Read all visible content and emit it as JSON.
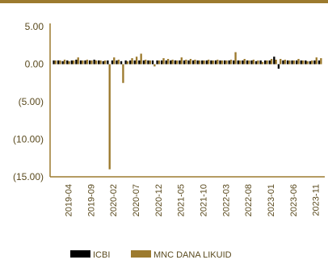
{
  "chart_data": {
    "type": "bar",
    "title": "",
    "xlabel": "",
    "ylabel": "",
    "ylim": [
      -15,
      5
    ],
    "yticks": [
      5,
      0,
      -5,
      -10,
      -15
    ],
    "ytick_labels": [
      "5.00",
      "0.00",
      "(5.00)",
      "(10.00)",
      "(15.00)"
    ],
    "xtick_labels": [
      "2019-04",
      "2019-09",
      "2020-02",
      "2020-07",
      "2020-12",
      "2021-05",
      "2021-10",
      "2022-03",
      "2022-08",
      "2023-01",
      "2023-06",
      "2023-11"
    ],
    "legend_position": "bottom",
    "x": [
      "2019-01",
      "2019-02",
      "2019-03",
      "2019-04",
      "2019-05",
      "2019-06",
      "2019-07",
      "2019-08",
      "2019-09",
      "2019-10",
      "2019-11",
      "2019-12",
      "2020-01",
      "2020-02",
      "2020-03",
      "2020-04",
      "2020-05",
      "2020-06",
      "2020-07",
      "2020-08",
      "2020-09",
      "2020-10",
      "2020-11",
      "2020-12",
      "2021-01",
      "2021-02",
      "2021-03",
      "2021-04",
      "2021-05",
      "2021-06",
      "2021-07",
      "2021-08",
      "2021-09",
      "2021-10",
      "2021-11",
      "2021-12",
      "2022-01",
      "2022-02",
      "2022-03",
      "2022-04",
      "2022-05",
      "2022-06",
      "2022-07",
      "2022-08",
      "2022-09",
      "2022-10",
      "2022-11",
      "2022-12",
      "2023-01",
      "2023-02",
      "2023-03",
      "2023-04",
      "2023-05",
      "2023-06",
      "2023-07",
      "2023-08",
      "2023-09",
      "2023-10",
      "2023-11",
      "2023-12"
    ],
    "series": [
      {
        "name": "ICBI",
        "color": "#000000",
        "values": [
          0.5,
          0.5,
          0.4,
          0.5,
          0.5,
          0.6,
          0.5,
          0.5,
          0.5,
          0.6,
          0.5,
          0.4,
          0.5,
          0.5,
          0.5,
          0.4,
          0.5,
          0.5,
          0.5,
          0.5,
          0.5,
          0.5,
          0.5,
          0.5,
          0.5,
          0.5,
          0.5,
          0.5,
          0.5,
          0.5,
          0.5,
          0.5,
          0.5,
          0.5,
          0.5,
          0.5,
          0.5,
          0.5,
          0.5,
          0.5,
          0.5,
          0.5,
          0.5,
          0.5,
          0.5,
          0.4,
          0.5,
          0.5,
          0.5,
          1.0,
          -0.6,
          0.5,
          0.5,
          0.5,
          0.5,
          0.5,
          0.5,
          0.4,
          0.5,
          0.5
        ]
      },
      {
        "name": "MNC DANA LIKUID",
        "color": "#9c7a2e",
        "values": [
          0.5,
          0.5,
          0.6,
          0.4,
          0.5,
          0.9,
          0.5,
          0.6,
          0.5,
          0.5,
          0.5,
          0.5,
          -14.0,
          0.9,
          0.6,
          -2.5,
          0.4,
          0.8,
          1.0,
          1.4,
          0.6,
          0.5,
          -0.3,
          0.5,
          0.8,
          0.7,
          0.6,
          0.5,
          0.9,
          0.6,
          0.7,
          0.6,
          0.5,
          0.5,
          0.6,
          0.5,
          0.6,
          0.5,
          0.5,
          0.6,
          1.6,
          0.5,
          0.7,
          0.5,
          0.6,
          0.5,
          0.3,
          0.5,
          0.7,
          0.6,
          0.7,
          0.6,
          0.5,
          0.5,
          0.7,
          0.5,
          0.4,
          0.5,
          0.9,
          0.8
        ]
      }
    ]
  }
}
